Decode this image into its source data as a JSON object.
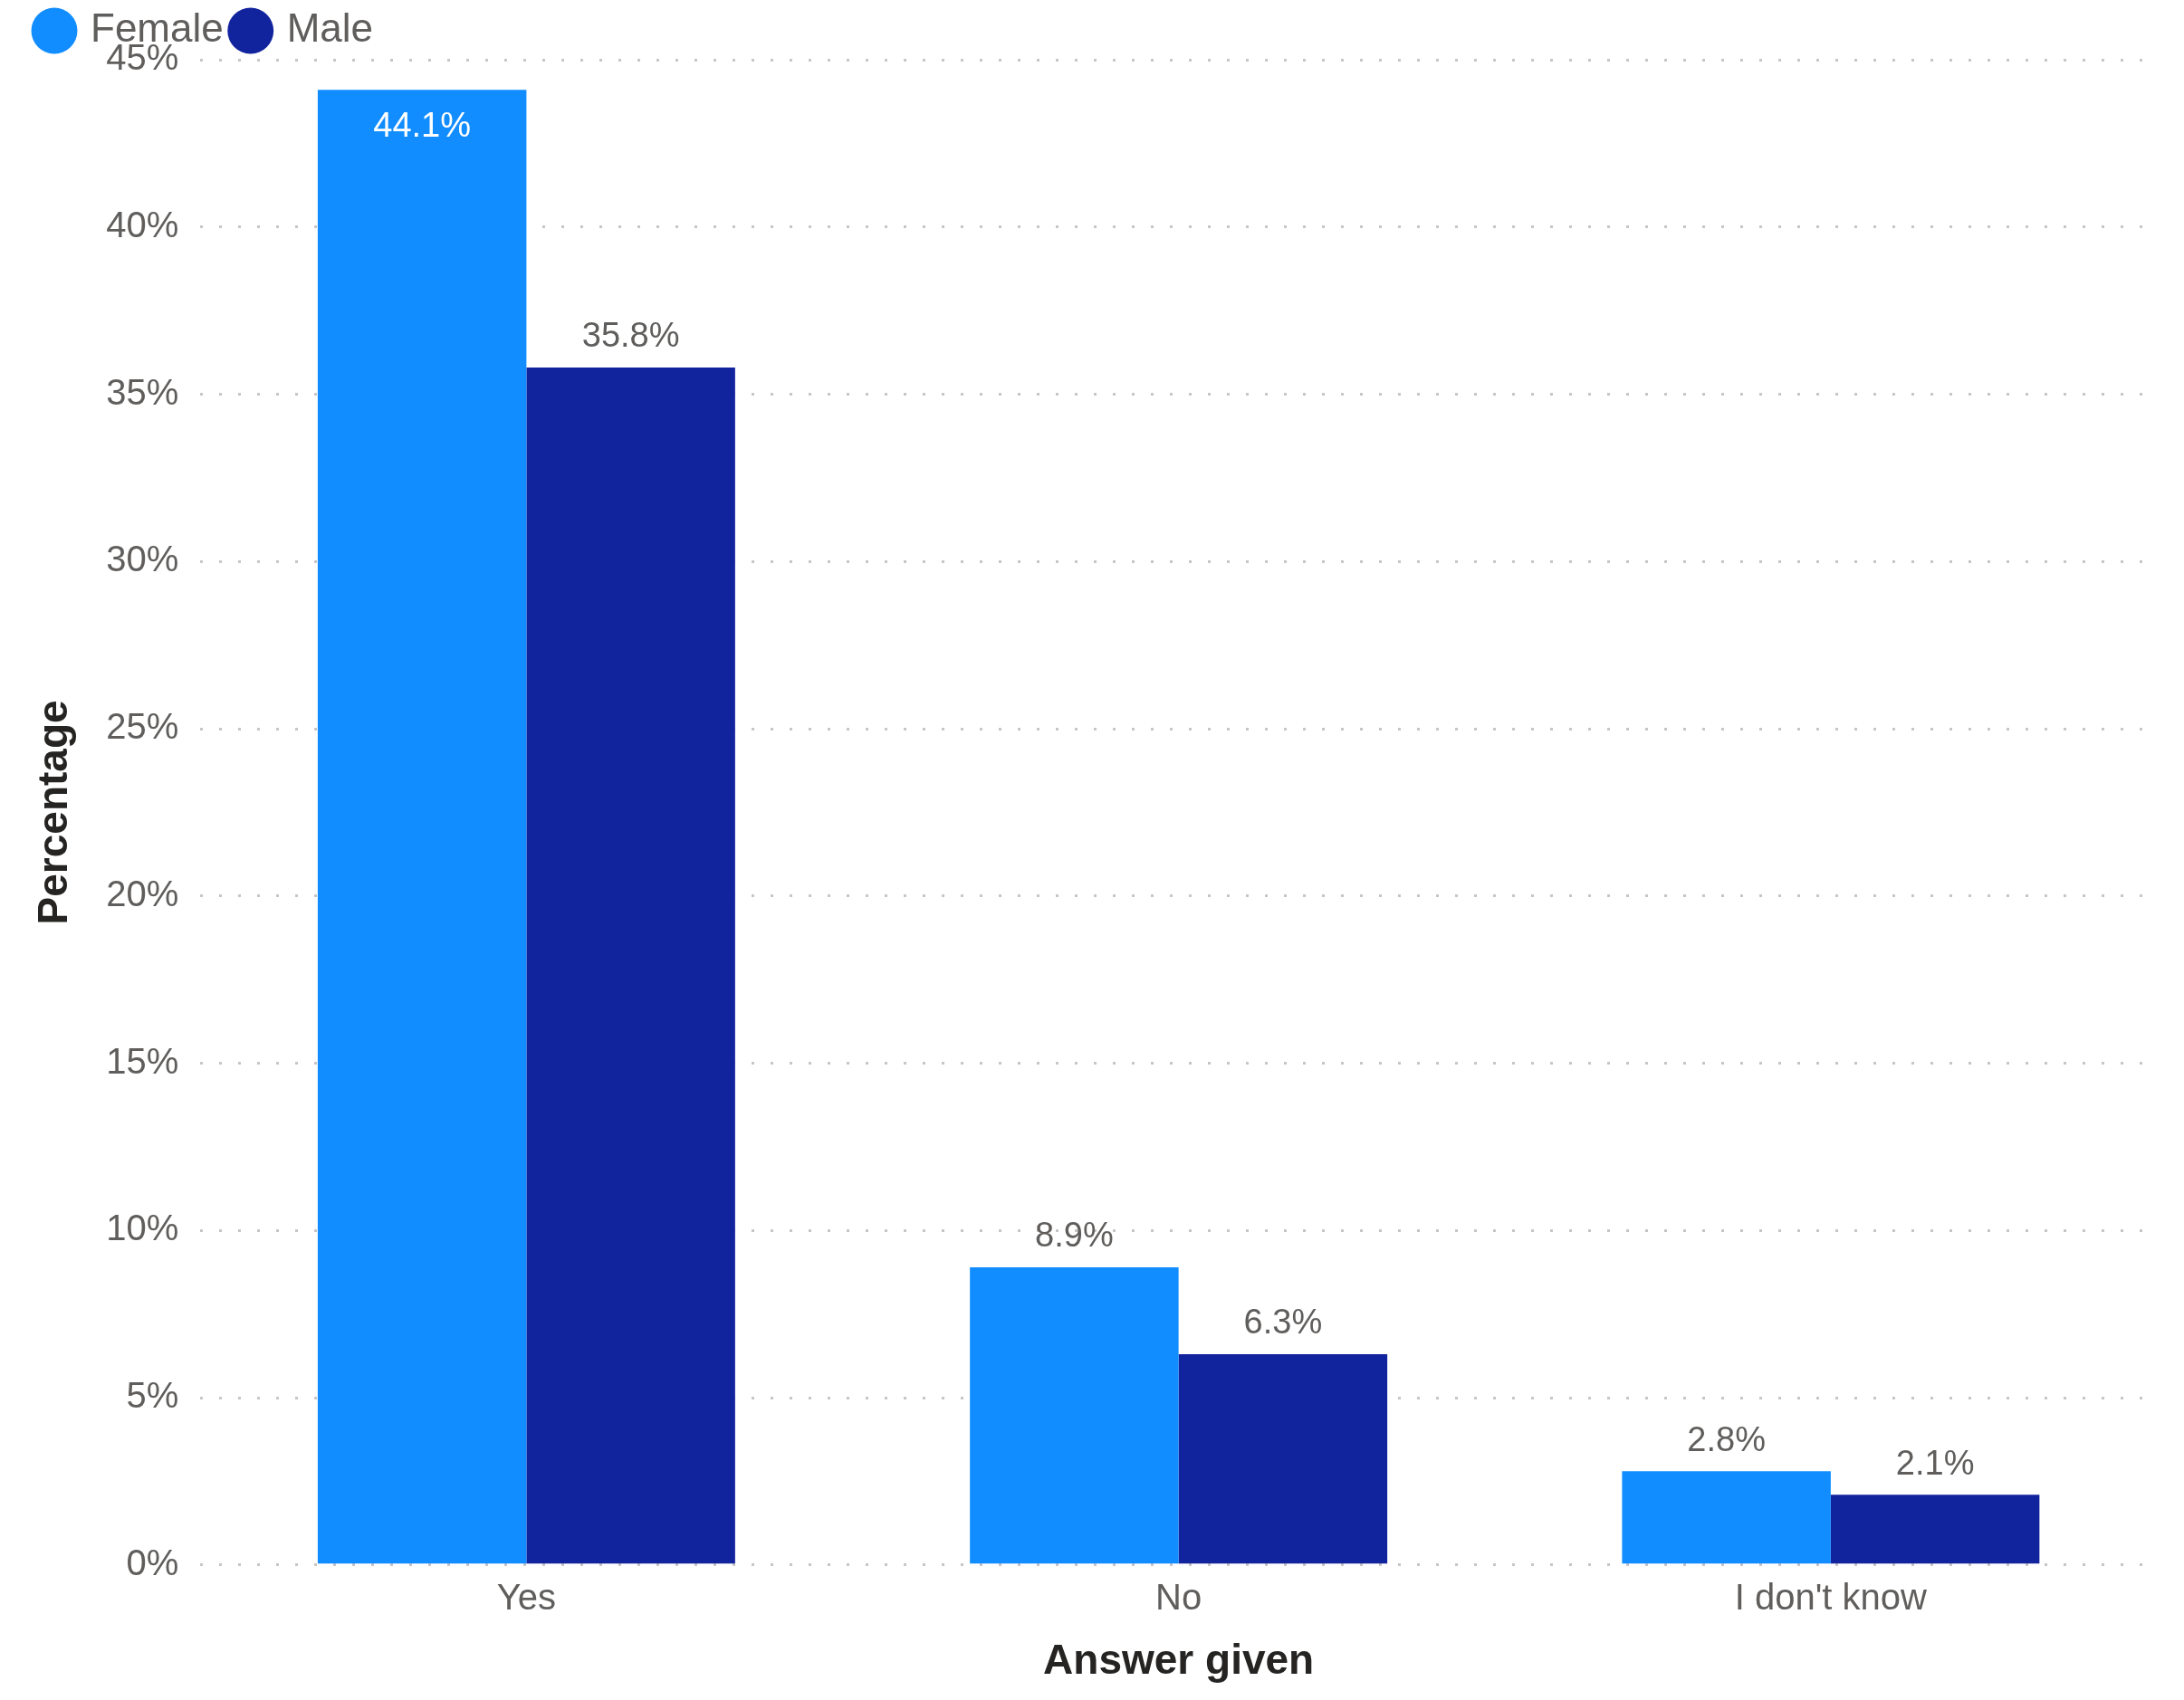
{
  "chart_data": {
    "type": "bar",
    "xlabel": "Answer given",
    "ylabel": "Percentage",
    "categories": [
      "Yes",
      "No",
      "I don't know"
    ],
    "series": [
      {
        "name": "Female",
        "color": "#118dff",
        "values": [
          44.1,
          8.9,
          2.8
        ],
        "value_labels": [
          "44.1%",
          "8.9%",
          "2.8%"
        ]
      },
      {
        "name": "Male",
        "color": "#12239e",
        "values": [
          35.8,
          6.3,
          2.1
        ],
        "value_labels": [
          "35.8%",
          "6.3%",
          "2.1%"
        ]
      }
    ],
    "ylim": [
      0,
      45
    ],
    "yticks": [
      {
        "value": 0,
        "label": "0%"
      },
      {
        "value": 5,
        "label": "5%"
      },
      {
        "value": 10,
        "label": "10%"
      },
      {
        "value": 15,
        "label": "15%"
      },
      {
        "value": 20,
        "label": "20%"
      },
      {
        "value": 25,
        "label": "25%"
      },
      {
        "value": 30,
        "label": "30%"
      },
      {
        "value": 35,
        "label": "35%"
      },
      {
        "value": 40,
        "label": "40%"
      },
      {
        "value": 45,
        "label": "45%"
      }
    ],
    "grid": "y",
    "legend": "top left"
  }
}
